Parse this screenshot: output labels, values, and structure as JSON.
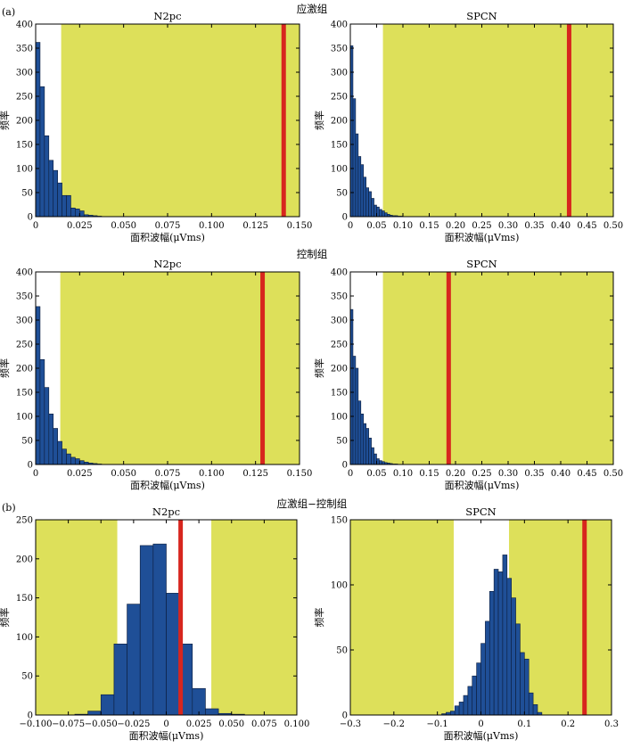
{
  "figure": {
    "panel_labels": [
      "(a)",
      "(b)"
    ],
    "group_titles": [
      "应激组",
      "控制组",
      "应激组−控制组"
    ]
  },
  "colors": {
    "background_shade": "#dde05a",
    "bar_fill": "#1f4f97",
    "bar_edge": "#0c1c3a",
    "observed_line": "#d7261e",
    "axis": "#000000"
  },
  "chart_data": [
    {
      "type": "bar",
      "title": "N2pc",
      "group": "应激组",
      "xlabel": "面积波幅(μVms)",
      "ylabel": "频率",
      "xlim": [
        0,
        0.15
      ],
      "ylim": [
        0,
        400
      ],
      "xticks": [
        0,
        0.025,
        0.05,
        0.075,
        0.1,
        0.125,
        0.15
      ],
      "xtick_labels": [
        "0",
        "0.025",
        "0.050",
        "0.075",
        "0.100",
        "0.125",
        "0.150"
      ],
      "yticks": [
        0,
        50,
        100,
        150,
        200,
        250,
        300,
        350,
        400
      ],
      "bin_width": 0.0025,
      "bin_start": 0,
      "values": [
        362,
        270,
        168,
        117,
        96,
        70,
        44,
        44,
        18,
        16,
        12,
        4,
        3,
        2,
        1
      ],
      "unshaded_range": [
        0,
        0.0145
      ],
      "observed_value": 0.141,
      "grid": false
    },
    {
      "type": "bar",
      "title": "SPCN",
      "group": "应激组",
      "xlabel": "面积波幅(μVms)",
      "ylabel": "频率",
      "xlim": [
        0,
        0.5
      ],
      "ylim": [
        0,
        400
      ],
      "xticks": [
        0,
        0.05,
        0.1,
        0.15,
        0.2,
        0.25,
        0.3,
        0.35,
        0.4,
        0.45,
        0.5
      ],
      "xtick_labels": [
        "0",
        "0.05",
        "0.10",
        "0.15",
        "0.20",
        "0.25",
        "0.30",
        "0.35",
        "0.40",
        "0.45",
        "0.50"
      ],
      "yticks": [
        0,
        50,
        100,
        150,
        200,
        250,
        300,
        350,
        400
      ],
      "bin_width": 0.005,
      "bin_start": 0,
      "values": [
        355,
        245,
        172,
        125,
        108,
        82,
        60,
        52,
        38,
        24,
        20,
        15,
        12,
        8,
        5,
        3,
        2,
        2,
        1,
        1
      ],
      "unshaded_range": [
        0,
        0.062
      ],
      "observed_value": 0.416,
      "grid": false
    },
    {
      "type": "bar",
      "title": "N2pc",
      "group": "控制组",
      "xlabel": "面积波幅(μVms)",
      "ylabel": "频率",
      "xlim": [
        0,
        0.15
      ],
      "ylim": [
        0,
        400
      ],
      "xticks": [
        0,
        0.025,
        0.05,
        0.075,
        0.1,
        0.125,
        0.15
      ],
      "xtick_labels": [
        "0",
        "0.025",
        "0.050",
        "0.075",
        "0.100",
        "0.125",
        "0.150"
      ],
      "yticks": [
        0,
        50,
        100,
        150,
        200,
        250,
        300,
        350,
        400
      ],
      "bin_width": 0.0025,
      "bin_start": 0,
      "values": [
        328,
        218,
        160,
        105,
        75,
        48,
        32,
        22,
        15,
        12,
        8,
        5,
        3,
        2,
        1
      ],
      "unshaded_range": [
        0,
        0.014
      ],
      "observed_value": 0.129,
      "grid": false
    },
    {
      "type": "bar",
      "title": "SPCN",
      "group": "控制组",
      "xlabel": "面积波幅(μVms)",
      "ylabel": "频率",
      "xlim": [
        0,
        0.5
      ],
      "ylim": [
        0,
        400
      ],
      "xticks": [
        0,
        0.05,
        0.1,
        0.15,
        0.2,
        0.25,
        0.3,
        0.35,
        0.4,
        0.45,
        0.5
      ],
      "xtick_labels": [
        "0",
        "0.05",
        "0.10",
        "0.15",
        "0.20",
        "0.25",
        "0.30",
        "0.35",
        "0.40",
        "0.45",
        "0.50"
      ],
      "yticks": [
        0,
        50,
        100,
        150,
        200,
        250,
        300,
        350,
        400
      ],
      "bin_width": 0.005,
      "bin_start": 0,
      "values": [
        322,
        225,
        200,
        132,
        105,
        85,
        75,
        55,
        35,
        22,
        12,
        8,
        6,
        4,
        3,
        2,
        1,
        1
      ],
      "unshaded_range": [
        0,
        0.062
      ],
      "observed_value": 0.187,
      "grid": false
    },
    {
      "type": "bar",
      "title": "N2pc",
      "group": "应激组−控制组",
      "xlabel": "面积波幅(μVms)",
      "ylabel": "频率",
      "xlim": [
        -0.1,
        0.1
      ],
      "ylim": [
        0,
        250
      ],
      "xticks": [
        -0.1,
        -0.075,
        -0.05,
        -0.025,
        0,
        0.025,
        0.05,
        0.075,
        0.1
      ],
      "xtick_labels": [
        "−0.100",
        "−0.075",
        "−0.050",
        "−0.025",
        "0",
        "0.025",
        "0.050",
        "0.075",
        "0.100"
      ],
      "yticks": [
        0,
        50,
        100,
        150,
        200,
        250
      ],
      "bin_width": 0.01,
      "bin_start": -0.07,
      "values": [
        1,
        5,
        26,
        91,
        142,
        217,
        219,
        156,
        91,
        34,
        8,
        2,
        1
      ],
      "unshaded_range": [
        -0.0375,
        0.0345
      ],
      "observed_value": 0.011,
      "grid": false
    },
    {
      "type": "bar",
      "title": "SPCN",
      "group": "应激组−控制组",
      "xlabel": "面积波幅(μVms)",
      "ylabel": "频率",
      "xlim": [
        -0.3,
        0.3
      ],
      "ylim": [
        0,
        150
      ],
      "xticks": [
        -0.3,
        -0.2,
        -0.1,
        0,
        0.1,
        0.2,
        0.3
      ],
      "xtick_labels": [
        "−0.3",
        "−0.2",
        "−0.1",
        "0",
        "0.1",
        "0.2",
        "0.3"
      ],
      "yticks": [
        0,
        50,
        100,
        150
      ],
      "bin_width": 0.01,
      "bin_start": -0.1,
      "values": [
        0,
        1,
        2,
        3,
        7,
        10,
        15,
        22,
        30,
        40,
        55,
        72,
        95,
        112,
        110,
        123,
        105,
        90,
        70,
        48,
        43,
        17,
        8,
        2,
        0
      ],
      "unshaded_range": [
        -0.0625,
        0.0645
      ],
      "observed_value": 0.238,
      "grid": false
    }
  ]
}
